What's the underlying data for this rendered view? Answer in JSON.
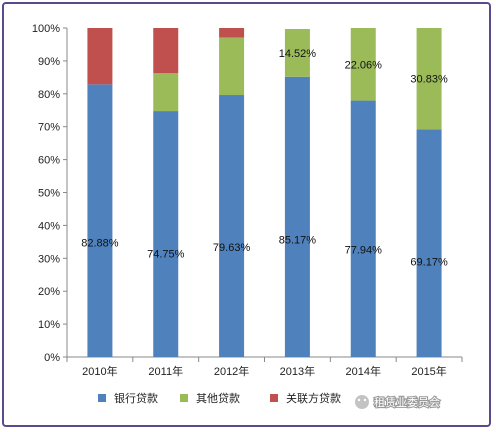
{
  "chart_data": {
    "type": "bar",
    "stacked": true,
    "categories": [
      "2010年",
      "2011年",
      "2012年",
      "2013年",
      "2014年",
      "2015年"
    ],
    "series": [
      {
        "name": "银行贷款",
        "color": "#4f81bd",
        "values": [
          82.88,
          74.75,
          79.63,
          85.17,
          77.94,
          69.17
        ],
        "labels": [
          "82.88%",
          "74.75%",
          "79.63%",
          "85.17%",
          "77.94%",
          "69.17%"
        ]
      },
      {
        "name": "其他贷款",
        "color": "#9bbb59",
        "values": [
          0,
          11.5,
          17.5,
          14.52,
          22.06,
          30.83
        ],
        "labels": [
          "",
          "",
          "",
          "14.52%",
          "22.06%",
          "30.83%"
        ]
      },
      {
        "name": "关联方贷款",
        "color": "#c0504d",
        "values": [
          17.12,
          13.75,
          2.87,
          0,
          0,
          0
        ],
        "labels": [
          "",
          "",
          "",
          "",
          "",
          ""
        ]
      }
    ],
    "yticks": [
      "0%",
      "10%",
      "20%",
      "30%",
      "40%",
      "50%",
      "60%",
      "70%",
      "80%",
      "90%",
      "100%"
    ],
    "ylim": [
      0,
      100
    ],
    "grid": false,
    "legend": "bottom",
    "title": "",
    "xlabel": "",
    "ylabel": ""
  },
  "watermark": {
    "text": "租赁业委员会",
    "icon": "wechat-icon"
  }
}
